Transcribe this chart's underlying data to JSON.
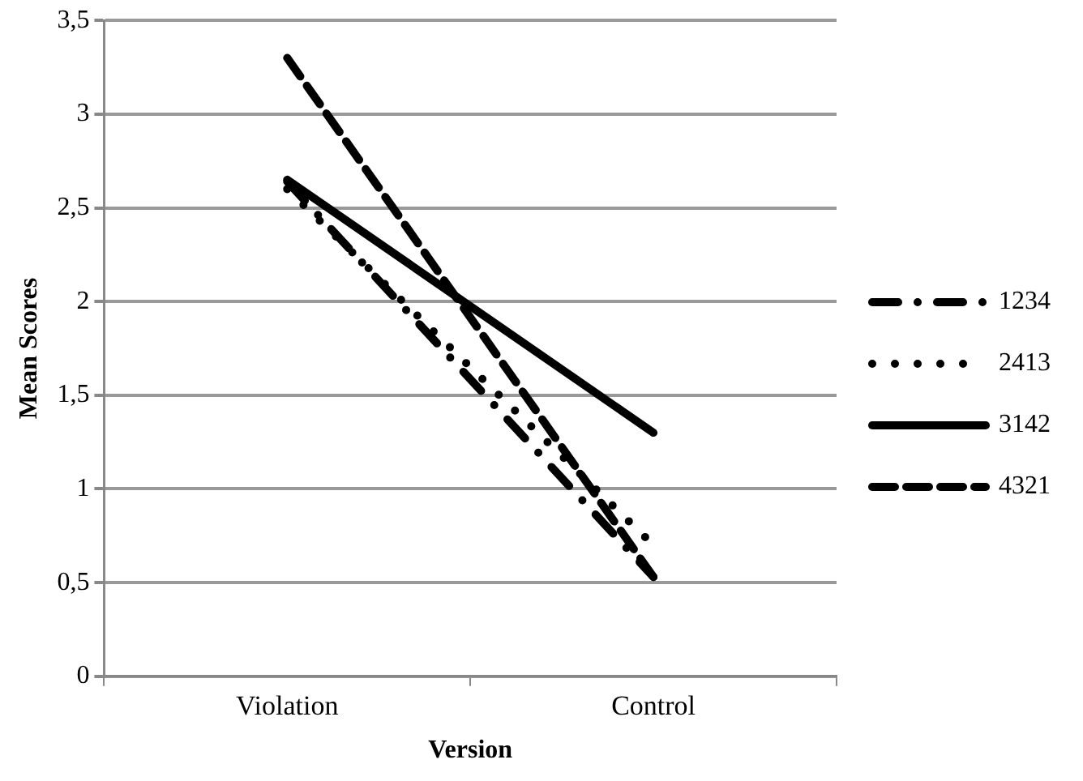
{
  "chart_data": {
    "type": "line",
    "xlabel": "Version",
    "ylabel": "Mean Scores",
    "categories": [
      "Violation",
      "Control"
    ],
    "series": [
      {
        "name": "1234",
        "color": "#000000",
        "line_style": "dashdot",
        "values": [
          2.64,
          0.53
        ]
      },
      {
        "name": "2413",
        "color": "#000000",
        "line_style": "dotted",
        "values": [
          2.6,
          0.7
        ]
      },
      {
        "name": "3142",
        "color": "#000000",
        "line_style": "solid",
        "values": [
          2.65,
          1.3
        ]
      },
      {
        "name": "4321",
        "color": "#000000",
        "line_style": "dashed",
        "values": [
          3.3,
          0.53
        ]
      }
    ],
    "ylim": [
      0,
      3.5
    ],
    "yticks": [
      0,
      {
        "value": 0.5,
        "label": "0,5"
      },
      1,
      {
        "value": 1.5,
        "label": "1,5"
      },
      2,
      {
        "value": 2.5,
        "label": "2,5"
      },
      3,
      {
        "value": 3.5,
        "label": "3,5"
      }
    ],
    "grid": "y",
    "legend": "right",
    "marker": "none"
  }
}
